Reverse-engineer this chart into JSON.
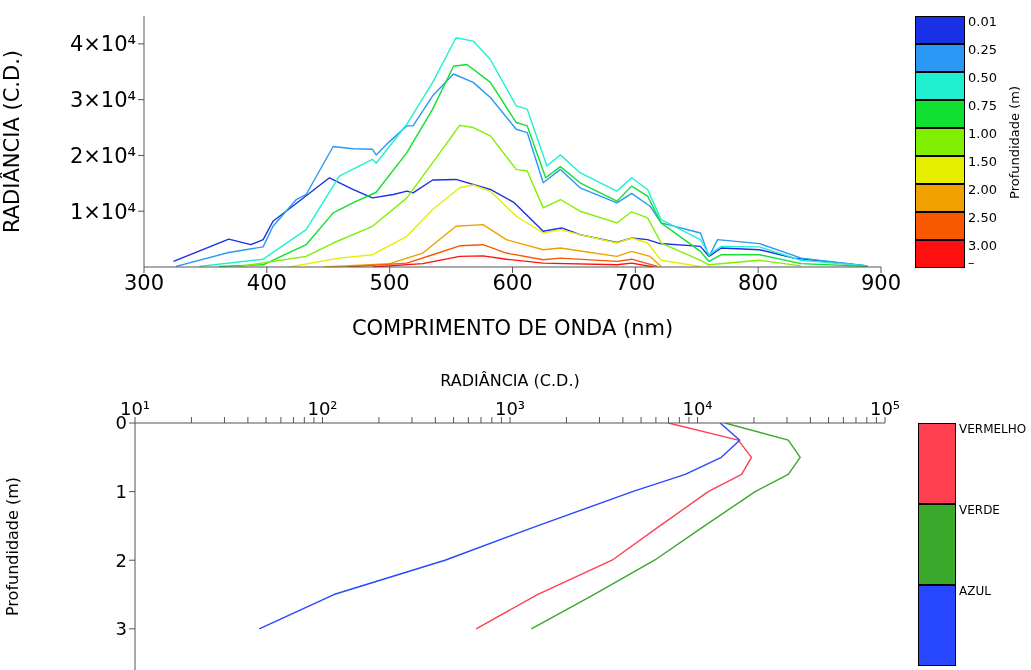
{
  "chart_data": [
    {
      "type": "line",
      "xlabel": "COMPRIMENTO DE ONDA (nm)",
      "ylabel": "RADIÂNCIA (C.D.)",
      "legend_title": "Profundidade (m)",
      "legend": "right",
      "annotations": [
        "–"
      ],
      "xlim": [
        300,
        900
      ],
      "xticks": [
        300,
        400,
        500,
        600,
        700,
        800,
        900
      ],
      "ylim": [
        0,
        45000
      ],
      "yticks": [
        {
          "value": 10000,
          "label": "1×10⁴"
        },
        {
          "value": 20000,
          "label": "2×10⁴"
        },
        {
          "value": 30000,
          "label": "3×10⁴"
        },
        {
          "value": 40000,
          "label": "4×10⁴"
        }
      ],
      "series": [
        {
          "name": "0.01",
          "color": "#1a30e6",
          "x": [
            324,
            369,
            387,
            397,
            405,
            421,
            451,
            470,
            486,
            503,
            514,
            519,
            535,
            554,
            582,
            601,
            625,
            640,
            655,
            685,
            697,
            710,
            720,
            753,
            760,
            770,
            801,
            829,
            862,
            889
          ],
          "values": [
            1000,
            5000,
            4000,
            4900,
            8200,
            10900,
            16000,
            13900,
            12400,
            13000,
            13600,
            13300,
            15600,
            15700,
            13900,
            11600,
            6400,
            7000,
            5800,
            4400,
            5200,
            4900,
            4200,
            3700,
            1900,
            3400,
            3100,
            1600,
            800,
            200
          ]
        },
        {
          "name": "0.25",
          "color": "#2a98f4",
          "x": [
            326,
            369,
            397,
            405,
            424,
            432,
            454,
            470,
            486,
            489,
            499,
            514,
            519,
            535,
            552,
            568,
            582,
            603,
            612,
            625,
            639,
            655,
            685,
            697,
            712,
            721,
            753,
            760,
            767,
            801,
            835,
            889
          ],
          "values": [
            100,
            2600,
            3600,
            7300,
            12100,
            13000,
            21600,
            21200,
            21100,
            20100,
            22300,
            25300,
            25300,
            30700,
            34600,
            33100,
            30400,
            24700,
            24100,
            15100,
            17500,
            14200,
            11500,
            13200,
            10900,
            7900,
            6100,
            1900,
            4900,
            4200,
            1600,
            200
          ]
        },
        {
          "name": "0.50",
          "color": "#20f0d0",
          "x": [
            345,
            397,
            432,
            459,
            486,
            489,
            514,
            535,
            554,
            568,
            582,
            603,
            612,
            628,
            639,
            655,
            685,
            697,
            710,
            721,
            753,
            760,
            770,
            801,
            835,
            889
          ],
          "values": [
            100,
            1400,
            6700,
            16300,
            19300,
            18600,
            25600,
            33100,
            41100,
            40500,
            37200,
            28900,
            28300,
            18100,
            20100,
            16900,
            13600,
            16000,
            13900,
            8500,
            4900,
            2200,
            3700,
            3600,
            1200,
            200
          ]
        },
        {
          "name": "0.75",
          "color": "#10e030",
          "x": [
            361,
            397,
            432,
            454,
            470,
            489,
            514,
            535,
            552,
            563,
            582,
            603,
            612,
            627,
            639,
            655,
            685,
            697,
            710,
            721,
            753,
            760,
            770,
            801,
            835,
            889
          ],
          "values": [
            100,
            400,
            4000,
            9700,
            11500,
            13400,
            20500,
            28300,
            36000,
            36300,
            33100,
            25900,
            25300,
            16000,
            18000,
            15100,
            11800,
            14500,
            12700,
            7900,
            2800,
            1000,
            2200,
            2200,
            600,
            100
          ]
        },
        {
          "name": "1.00",
          "color": "#80f000",
          "x": [
            378,
            432,
            454,
            486,
            514,
            535,
            557,
            568,
            582,
            603,
            612,
            625,
            639,
            655,
            685,
            697,
            710,
            721,
            753,
            760,
            801,
            835
          ],
          "values": [
            100,
            1900,
            4300,
            7300,
            12400,
            18700,
            25400,
            25000,
            23500,
            17500,
            17200,
            10600,
            12100,
            10000,
            7900,
            9900,
            8800,
            4300,
            1200,
            400,
            1200,
            200
          ]
        },
        {
          "name": "1.50",
          "color": "#e6ee00",
          "x": [
            418,
            459,
            486,
            514,
            535,
            557,
            568,
            582,
            603,
            625,
            639,
            655,
            685,
            697,
            710,
            721,
            753
          ],
          "values": [
            0,
            1600,
            2200,
            5500,
            10300,
            14200,
            14700,
            13600,
            9100,
            6100,
            6700,
            5800,
            4300,
            5200,
            4300,
            1200,
            100
          ]
        },
        {
          "name": "2.00",
          "color": "#f0a000",
          "x": [
            446,
            500,
            527,
            554,
            576,
            595,
            625,
            639,
            685,
            697,
            712,
            721
          ],
          "values": [
            0,
            600,
            2500,
            7300,
            7600,
            4900,
            3100,
            3400,
            1900,
            2800,
            1900,
            100
          ]
        },
        {
          "name": "2.50",
          "color": "#f85800",
          "x": [
            465,
            514,
            535,
            557,
            576,
            595,
            625,
            639,
            685,
            697,
            718
          ],
          "values": [
            0,
            700,
            2200,
            3800,
            4000,
            2500,
            1300,
            1600,
            1000,
            1400,
            100
          ]
        },
        {
          "name": "3.00",
          "color": "#ff1010",
          "x": [
            486,
            527,
            557,
            576,
            595,
            625,
            685,
            697,
            715
          ],
          "values": [
            0,
            600,
            1900,
            2000,
            1400,
            700,
            400,
            700,
            0
          ]
        }
      ]
    },
    {
      "type": "line",
      "xlabel": "RADIÂNCIA (C.D.)",
      "ylabel": "Profundidade (m)",
      "legend": "right",
      "log": "x",
      "xlim": [
        10,
        100000
      ],
      "xticks": [
        {
          "value": 10,
          "label": "10¹"
        },
        {
          "value": 20,
          "label": null
        },
        {
          "value": 30,
          "label": null
        },
        {
          "value": 40,
          "label": null
        },
        {
          "value": 50,
          "label": null
        },
        {
          "value": 60,
          "label": null
        },
        {
          "value": 70,
          "label": null
        },
        {
          "value": 80,
          "label": null
        },
        {
          "value": 90,
          "label": null
        },
        {
          "value": 100,
          "label": "10²"
        },
        {
          "value": 200,
          "label": null
        },
        {
          "value": 300,
          "label": null
        },
        {
          "value": 400,
          "label": null
        },
        {
          "value": 500,
          "label": null
        },
        {
          "value": 600,
          "label": null
        },
        {
          "value": 700,
          "label": null
        },
        {
          "value": 800,
          "label": null
        },
        {
          "value": 900,
          "label": null
        },
        {
          "value": 1000,
          "label": "10³"
        },
        {
          "value": 2000,
          "label": null
        },
        {
          "value": 3000,
          "label": null
        },
        {
          "value": 4000,
          "label": null
        },
        {
          "value": 5000,
          "label": null
        },
        {
          "value": 6000,
          "label": null
        },
        {
          "value": 7000,
          "label": null
        },
        {
          "value": 8000,
          "label": null
        },
        {
          "value": 9000,
          "label": null
        },
        {
          "value": 10000,
          "label": "10⁴"
        },
        {
          "value": 20000,
          "label": null
        },
        {
          "value": 30000,
          "label": null
        },
        {
          "value": 40000,
          "label": null
        },
        {
          "value": 50000,
          "label": null
        },
        {
          "value": 60000,
          "label": null
        },
        {
          "value": 70000,
          "label": null
        },
        {
          "value": 80000,
          "label": null
        },
        {
          "value": 90000,
          "label": null
        },
        {
          "value": 100000,
          "label": "10⁵"
        }
      ],
      "ylim": [
        3.6,
        0
      ],
      "yticks": [
        0,
        1,
        2,
        3
      ],
      "series": [
        {
          "name": "VERMELHO",
          "color": "#ff4050",
          "x": [
            7000,
            16500,
            19400,
            17200,
            11400,
            6300,
            3500,
            1400,
            660
          ],
          "values": [
            0,
            0.25,
            0.5,
            0.75,
            1,
            1.5,
            2,
            2.5,
            3
          ]
        },
        {
          "name": "VERDE",
          "color": "#3aa82a",
          "x": [
            14000,
            30500,
            35300,
            30500,
            20300,
            10900,
            5900,
            2800,
            1300
          ],
          "values": [
            0,
            0.25,
            0.5,
            0.75,
            1,
            1.5,
            2,
            2.5,
            3
          ]
        },
        {
          "name": "AZUL",
          "color": "#2848ff",
          "x": [
            13200,
            16800,
            13400,
            8600,
            4500,
            1400,
            450,
            115,
            46
          ],
          "values": [
            0,
            0.25,
            0.5,
            0.75,
            1,
            1.5,
            2,
            2.5,
            3
          ]
        }
      ]
    }
  ]
}
